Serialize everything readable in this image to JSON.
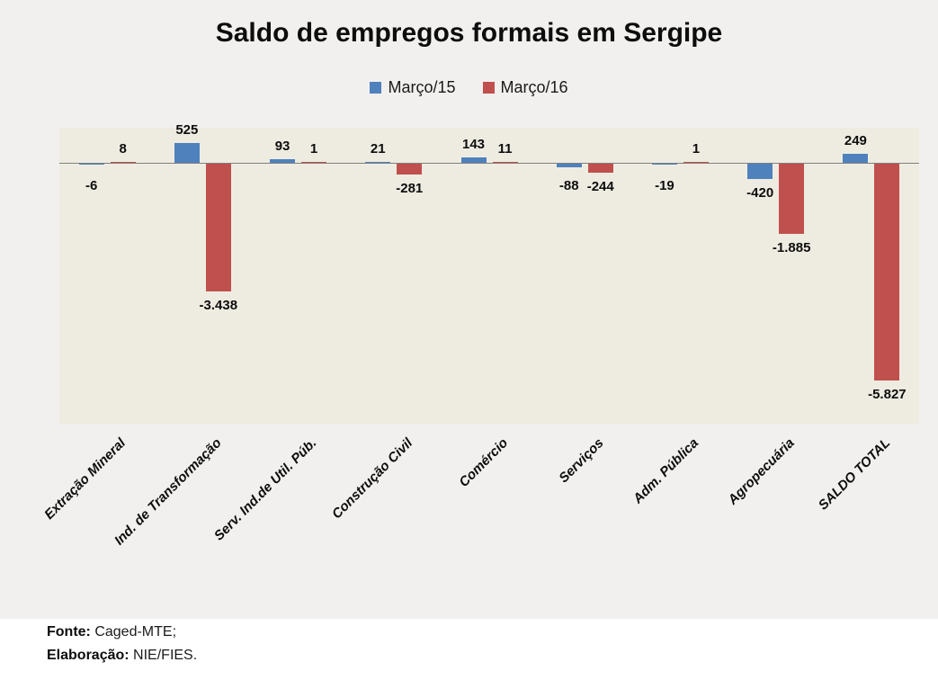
{
  "chart_data": {
    "type": "bar",
    "title": "Saldo de empregos formais em Sergipe",
    "categories": [
      "Extração Mineral",
      "Ind. de Transformação",
      "Serv. Ind.de Util. Púb.",
      "Construção Civil",
      "Comércio",
      "Serviços",
      "Adm. Pública",
      "Agropecuária",
      "SALDO TOTAL"
    ],
    "series": [
      {
        "name": "Março/15",
        "color": "#4f81bd",
        "values": [
          -6,
          525,
          93,
          21,
          143,
          -88,
          -19,
          -420,
          249
        ],
        "labels": [
          "-6",
          "525",
          "93",
          "21",
          "143",
          "-88",
          "-19",
          "-420",
          "249"
        ]
      },
      {
        "name": "Março/16",
        "color": "#c0504d",
        "values": [
          8,
          -3438,
          1,
          -281,
          11,
          -244,
          1,
          -1885,
          -5827
        ],
        "labels": [
          "8",
          "-3.438",
          "1",
          "-281",
          "11",
          "-244",
          "1",
          "-1.885",
          "-5.827"
        ]
      }
    ],
    "ylim": [
      -7000,
      1000
    ],
    "grid": false,
    "legend_position": "top",
    "xlabel": "",
    "ylabel": "",
    "plot_background": "#eeece1",
    "chart_background": "#f1f0ee",
    "axis_color": "#7f7f7f"
  },
  "footer": {
    "fonte_label": "Fonte:",
    "fonte_text": "Caged-MTE;",
    "elaboracao_label": "Elaboração:",
    "elaboracao_text": "NIE/FIES."
  }
}
